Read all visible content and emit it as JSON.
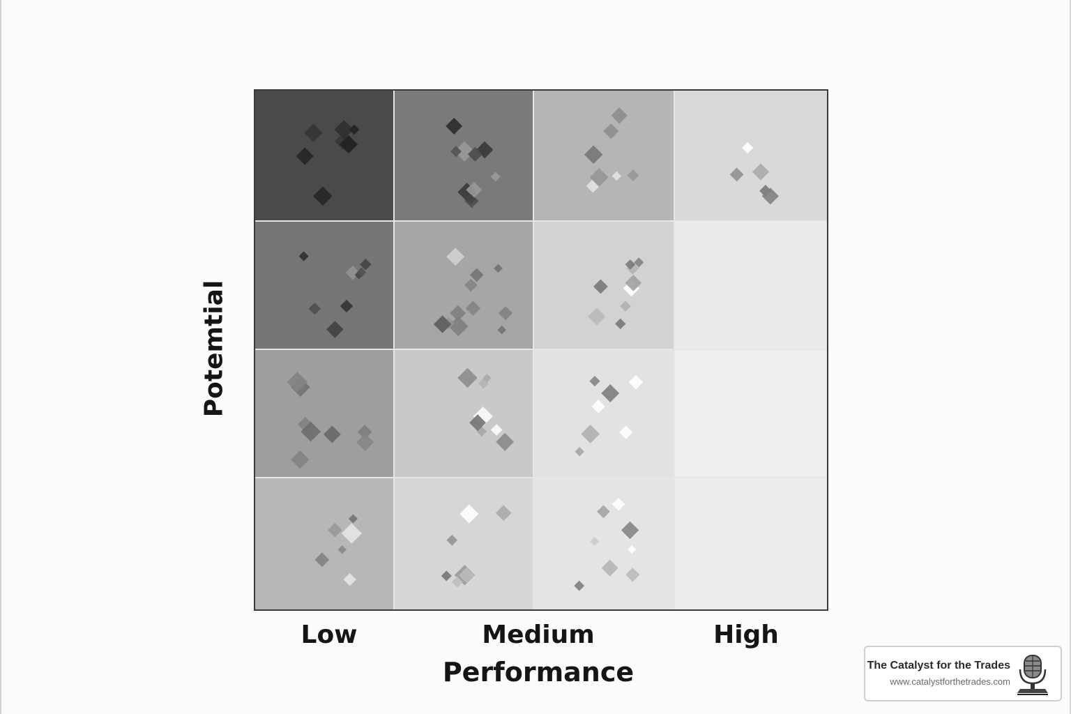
{
  "diagram": {
    "y_axis_label": "Potemtial",
    "x_axis_label": "Performance",
    "x_tick_labels": [
      "Low",
      "Medium",
      "High"
    ],
    "grid": {
      "rows": 4,
      "columns": 4,
      "cell_shades": [
        [
          "#4a4a4a",
          "#7a7a7a",
          "#b5b5b5",
          "#d9d9d9"
        ],
        [
          "#757575",
          "#a6a6a6",
          "#d2d2d2",
          "#ebebeb"
        ],
        [
          "#9e9e9e",
          "#c9c9c9",
          "#e2e2e2",
          "#eeeeee"
        ],
        [
          "#b7b7b7",
          "#d6d6d6",
          "#e4e4e4",
          "#ececec"
        ]
      ],
      "diamond_counts": [
        [
          7,
          10,
          7,
          5
        ],
        [
          8,
          11,
          9,
          0
        ],
        [
          8,
          8,
          7,
          0
        ],
        [
          6,
          7,
          8,
          0
        ]
      ]
    }
  },
  "branding": {
    "name": "The Catalyst for the Trades",
    "url": "www.catalystforthetrades.com",
    "logo_icon": "microphone-icon"
  }
}
